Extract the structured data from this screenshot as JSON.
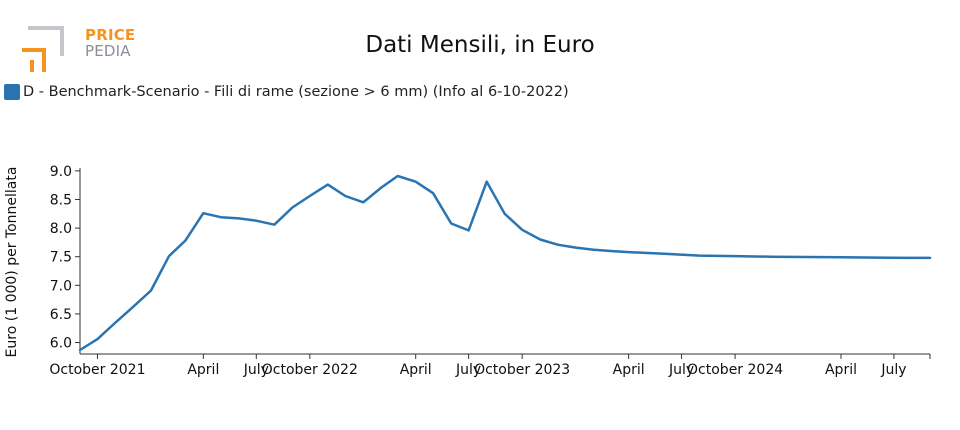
{
  "logo": {
    "top": "PRICE",
    "bottom": "PEDIA"
  },
  "colors": {
    "series": "#2a74b2",
    "logo_orange": "#f7941d",
    "logo_gray": "#9aa0a8"
  },
  "chart_data": {
    "type": "line",
    "title": "Dati Mensili, in Euro",
    "ylabel": "Euro (1 000) per Tonnellata",
    "xlabel": "",
    "ylim": [
      5.8,
      9.05
    ],
    "xlim": [
      "2021-09-01",
      "2025-09-01"
    ],
    "yticks": [
      6.0,
      6.5,
      7.0,
      7.5,
      8.0,
      8.5,
      9.0
    ],
    "ytick_labels": [
      "6.0",
      "6.5",
      "7.0",
      "7.5",
      "8.0",
      "8.5",
      "9.0"
    ],
    "xticks": [
      {
        "date": "2021-10-01",
        "label": "October 2021"
      },
      {
        "date": "2022-04-01",
        "label": "April"
      },
      {
        "date": "2022-07-01",
        "label": "July"
      },
      {
        "date": "2022-10-01",
        "label": "October 2022"
      },
      {
        "date": "2023-04-01",
        "label": "April"
      },
      {
        "date": "2023-07-01",
        "label": "July"
      },
      {
        "date": "2023-10-01",
        "label": "October 2023"
      },
      {
        "date": "2024-04-01",
        "label": "April"
      },
      {
        "date": "2024-07-01",
        "label": "July"
      },
      {
        "date": "2024-10-01",
        "label": "October 2024"
      },
      {
        "date": "2025-04-01",
        "label": "April"
      },
      {
        "date": "2025-07-01",
        "label": "July"
      }
    ],
    "grid": false,
    "legend_position": "top-left",
    "series": [
      {
        "name": "D - Benchmark-Scenario - Fili di rame (sezione > 6 mm) (Info al 6-10-2022)",
        "color": "#2a74b2",
        "x": [
          "2021-09-01",
          "2021-10-01",
          "2021-11-01",
          "2021-12-01",
          "2022-01-01",
          "2022-02-01",
          "2022-03-01",
          "2022-04-01",
          "2022-05-01",
          "2022-06-01",
          "2022-07-01",
          "2022-08-01",
          "2022-09-01",
          "2022-10-01",
          "2022-11-01",
          "2022-12-01",
          "2023-01-01",
          "2023-02-01",
          "2023-03-01",
          "2023-04-01",
          "2023-05-01",
          "2023-06-01",
          "2023-07-01",
          "2023-08-01",
          "2023-09-01",
          "2023-10-01",
          "2023-11-01",
          "2023-12-01",
          "2024-01-01",
          "2024-02-01",
          "2024-03-01",
          "2024-04-01",
          "2024-06-01",
          "2024-08-01",
          "2024-10-01",
          "2024-12-01",
          "2025-02-01",
          "2025-04-01",
          "2025-06-01",
          "2025-08-01",
          "2025-09-01"
        ],
        "y": [
          5.87,
          6.06,
          6.35,
          6.62,
          6.91,
          7.51,
          7.78,
          8.26,
          8.19,
          8.17,
          8.13,
          8.06,
          8.36,
          8.56,
          8.76,
          8.56,
          8.45,
          8.71,
          8.91,
          8.81,
          8.61,
          8.08,
          7.96,
          8.81,
          8.25,
          7.97,
          7.8,
          7.71,
          7.66,
          7.62,
          7.6,
          7.58,
          7.55,
          7.52,
          7.51,
          7.5,
          7.495,
          7.49,
          7.485,
          7.48,
          7.48
        ]
      }
    ]
  }
}
